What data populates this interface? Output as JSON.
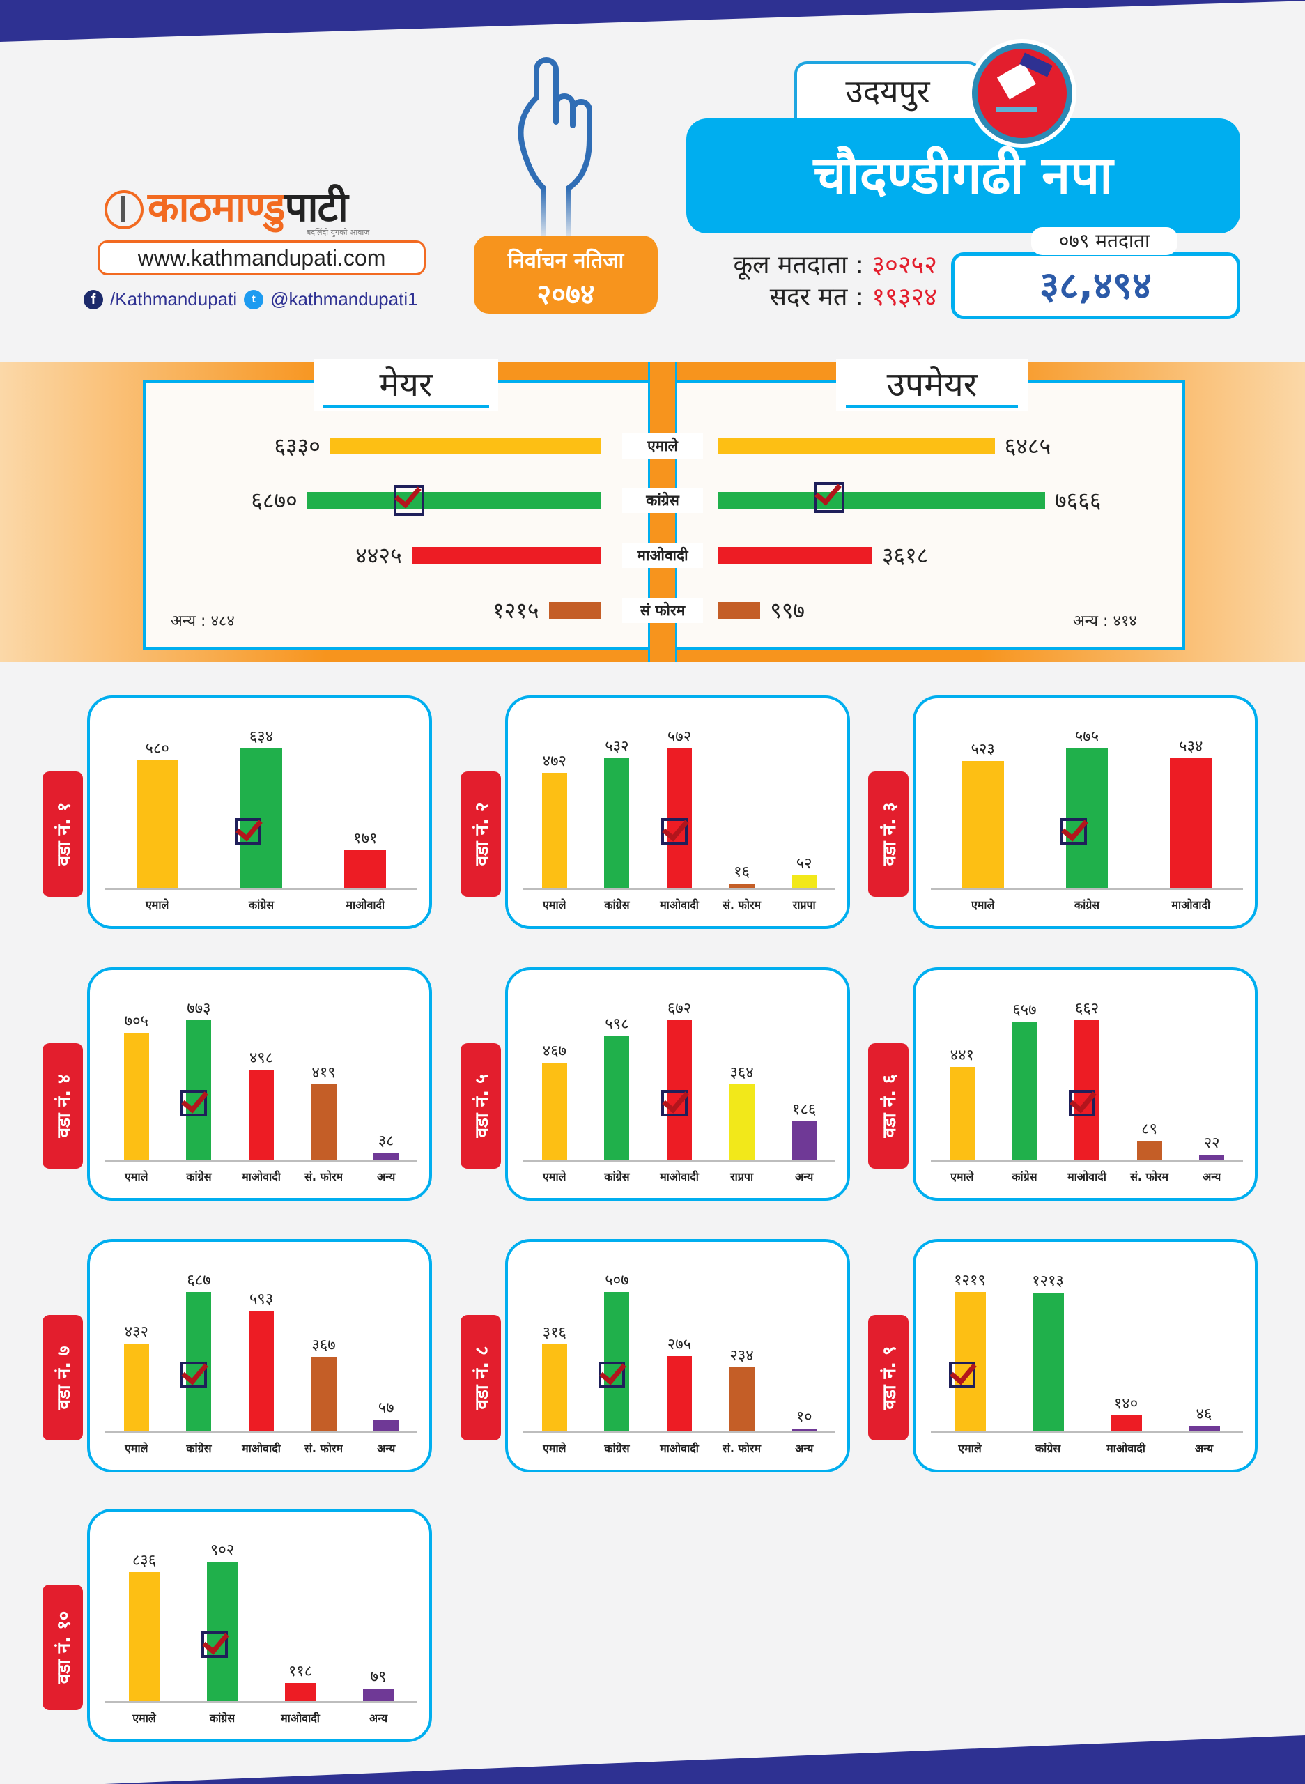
{
  "header": {
    "brand_name": "काठमाण्डु",
    "brand_name_dark": "पाटी",
    "brand_tagline": "बदलिंदो युगको आवाज",
    "website": "www.kathmandupati.com",
    "facebook": "/Kathmandupati",
    "twitter": "@kathmandupati1",
    "result_badge_line1": "निर्वाचन नतिजा",
    "result_badge_line2": "२०७४",
    "district": "उदयपुर",
    "municipality": "चौदण्डीगढी नपा",
    "total_voters_label": "कूल मतदाता :",
    "total_voters_value": "३०२५२",
    "valid_votes_label": "सदर मत :",
    "valid_votes_value": "१९३२४",
    "voters_079_label": "०७९ मतदाता",
    "voters_079_value": "३८,४९४"
  },
  "colors": {
    "uml": "#fdbf14",
    "congress": "#20b04b",
    "maoist": "#ed1c24",
    "forum": "#c45e27",
    "rpp": "#f2e81a",
    "other": "#6f3996",
    "accent_blue": "#00aeef",
    "accent_orange": "#f7941d",
    "navy": "#2e3192"
  },
  "mayor_panel": {
    "mayor_title": "मेयर",
    "deputy_title": "उपमेयर",
    "parties": [
      "एमाले",
      "कांग्रेस",
      "माओवादी",
      "सं फोरम"
    ],
    "party_keys": [
      "uml",
      "congress",
      "maoist",
      "forum"
    ],
    "mayor_votes": [
      6330,
      6870,
      4425,
      1215
    ],
    "mayor_votes_label": [
      "६३३०",
      "६८७०",
      "४४२५",
      "१२१५"
    ],
    "deputy_votes": [
      6485,
      7666,
      3618,
      997
    ],
    "deputy_votes_label": [
      "६४८५",
      "७६६६",
      "३६१८",
      "९९७"
    ],
    "mayor_winner_index": 1,
    "deputy_winner_index": 1,
    "mayor_other": "अन्य : ४८४",
    "deputy_other": "अन्य : ४१४"
  },
  "chart_data": [
    {
      "type": "bar",
      "title": "वडा नं. १",
      "categories": [
        "एमाले",
        "कांग्रेस",
        "माओवादी"
      ],
      "keys": [
        "uml",
        "congress",
        "maoist"
      ],
      "values": [
        580,
        634,
        171
      ],
      "labels": [
        "५८०",
        "६३४",
        "१७१"
      ],
      "winner": 1
    },
    {
      "type": "bar",
      "title": "वडा नं. २",
      "categories": [
        "एमाले",
        "कांग्रेस",
        "माओवादी",
        "सं. फोरम",
        "राप्रपा"
      ],
      "keys": [
        "uml",
        "congress",
        "maoist",
        "forum",
        "rpp"
      ],
      "values": [
        472,
        532,
        572,
        16,
        52
      ],
      "labels": [
        "४७२",
        "५३२",
        "५७२",
        "१६",
        "५२"
      ],
      "winner": 2
    },
    {
      "type": "bar",
      "title": "वडा नं. ३",
      "categories": [
        "एमाले",
        "कांग्रेस",
        "माओवादी"
      ],
      "keys": [
        "uml",
        "congress",
        "maoist"
      ],
      "values": [
        523,
        575,
        534
      ],
      "labels": [
        "५२३",
        "५७५",
        "५३४"
      ],
      "winner": 1
    },
    {
      "type": "bar",
      "title": "वडा नं. ४",
      "categories": [
        "एमाले",
        "कांग्रेस",
        "माओवादी",
        "सं. फोरम",
        "अन्य"
      ],
      "keys": [
        "uml",
        "congress",
        "maoist",
        "forum",
        "other"
      ],
      "values": [
        705,
        773,
        498,
        419,
        38
      ],
      "labels": [
        "७०५",
        "७७३",
        "४९८",
        "४१९",
        "३८"
      ],
      "winner": 1
    },
    {
      "type": "bar",
      "title": "वडा नं. ५",
      "categories": [
        "एमाले",
        "कांग्रेस",
        "माओवादी",
        "राप्रपा",
        "अन्य"
      ],
      "keys": [
        "uml",
        "congress",
        "maoist",
        "rpp",
        "other"
      ],
      "values": [
        467,
        598,
        672,
        364,
        186
      ],
      "labels": [
        "४६७",
        "५९८",
        "६७२",
        "३६४",
        "१८६"
      ],
      "winner": 2
    },
    {
      "type": "bar",
      "title": "वडा नं. ६",
      "categories": [
        "एमाले",
        "कांग्रेस",
        "माओवादी",
        "सं. फोरम",
        "अन्य"
      ],
      "keys": [
        "uml",
        "congress",
        "maoist",
        "forum",
        "other"
      ],
      "values": [
        441,
        657,
        662,
        89,
        22
      ],
      "labels": [
        "४४१",
        "६५७",
        "६६२",
        "८९",
        "२२"
      ],
      "winner": 2
    },
    {
      "type": "bar",
      "title": "वडा नं. ७",
      "categories": [
        "एमाले",
        "कांग्रेस",
        "माओवादी",
        "सं. फोरम",
        "अन्य"
      ],
      "keys": [
        "uml",
        "congress",
        "maoist",
        "forum",
        "other"
      ],
      "values": [
        432,
        687,
        593,
        367,
        57
      ],
      "labels": [
        "४३२",
        "६८७",
        "५९३",
        "३६७",
        "५७"
      ],
      "winner": 1
    },
    {
      "type": "bar",
      "title": "वडा नं. ८",
      "categories": [
        "एमाले",
        "कांग्रेस",
        "माओवादी",
        "सं. फोरम",
        "अन्य"
      ],
      "keys": [
        "uml",
        "congress",
        "maoist",
        "forum",
        "other"
      ],
      "values": [
        316,
        507,
        275,
        234,
        10
      ],
      "labels": [
        "३१६",
        "५०७",
        "२७५",
        "२३४",
        "१०"
      ],
      "winner": 1
    },
    {
      "type": "bar",
      "title": "वडा नं. ९",
      "categories": [
        "एमाले",
        "कांग्रेस",
        "माओवादी",
        "अन्य"
      ],
      "keys": [
        "uml",
        "congress",
        "maoist",
        "other"
      ],
      "values": [
        1219,
        1213,
        140,
        46
      ],
      "labels": [
        "१२१९",
        "१२१३",
        "१४०",
        "४६"
      ],
      "winner": 0
    },
    {
      "type": "bar",
      "title": "वडा नं. १०",
      "categories": [
        "एमाले",
        "कांग्रेस",
        "माओवादी",
        "अन्य"
      ],
      "keys": [
        "uml",
        "congress",
        "maoist",
        "other"
      ],
      "values": [
        836,
        902,
        118,
        79
      ],
      "labels": [
        "८३६",
        "९०२",
        "११८",
        "७९"
      ],
      "winner": 1
    }
  ]
}
